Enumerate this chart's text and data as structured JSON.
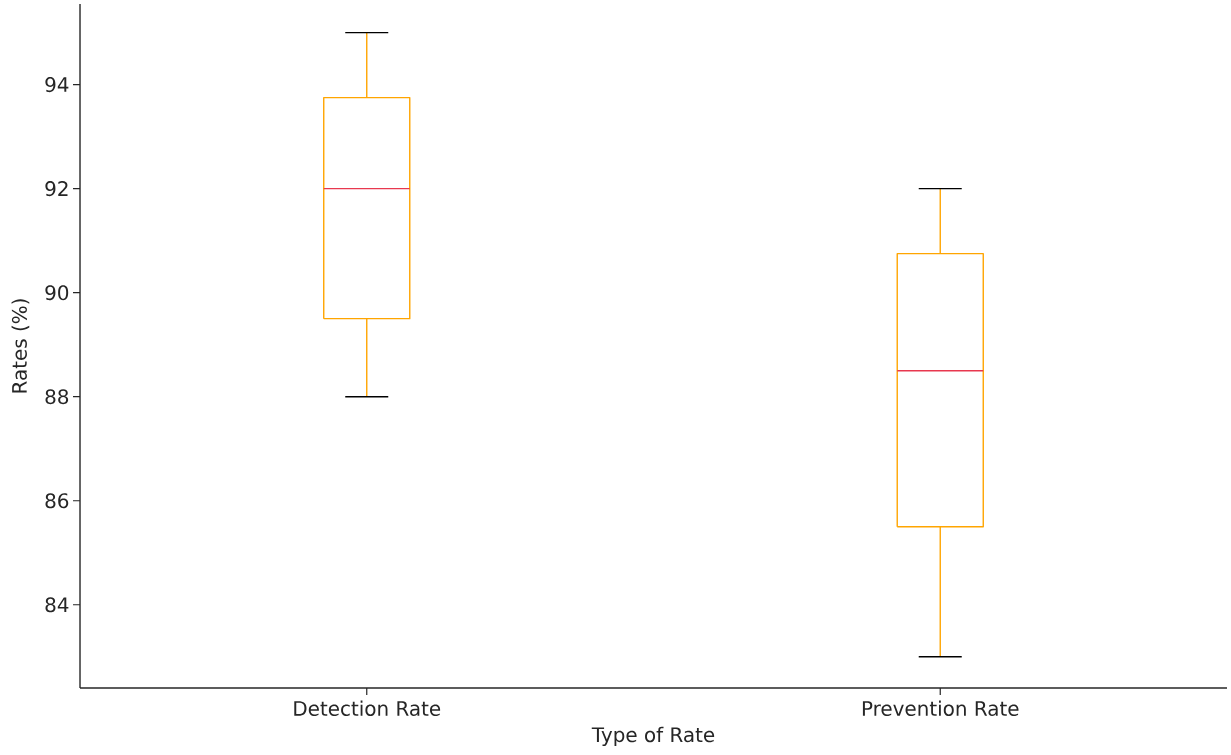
{
  "chart_data": {
    "type": "box",
    "xlabel": "Type of Rate",
    "ylabel": "Rates (%)",
    "categories": [
      "Detection Rate",
      "Prevention Rate"
    ],
    "series": [
      {
        "color": "#ffa500",
        "boxes": [
          {
            "low": 88,
            "q1": 89.5,
            "median": 92,
            "q3": 93.75,
            "high": 95
          },
          {
            "low": 83,
            "q1": 85.5,
            "median": 88.5,
            "q3": 90.75,
            "high": 92
          }
        ]
      }
    ],
    "ylim": [
      82.4,
      95.55
    ],
    "yticks": [
      84,
      86,
      88,
      90,
      92,
      94
    ]
  }
}
